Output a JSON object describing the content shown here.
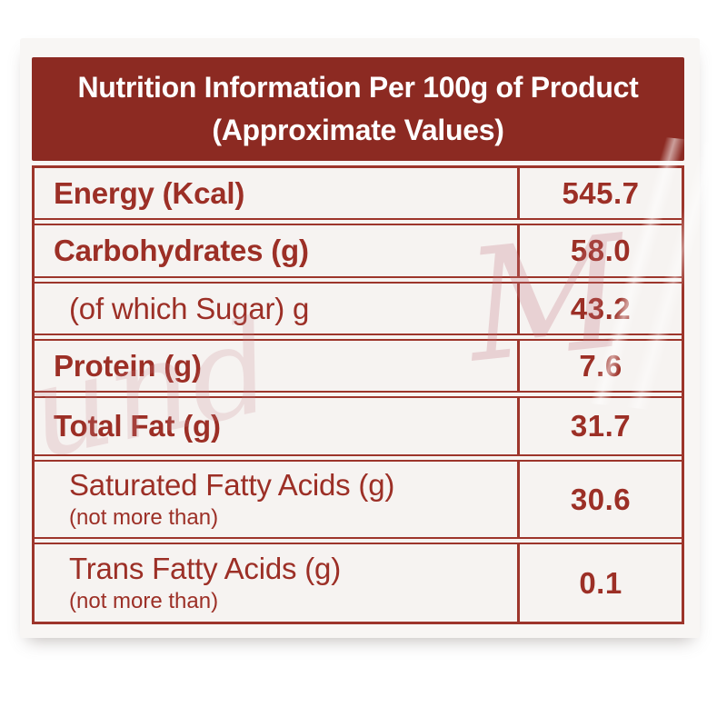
{
  "header": {
    "line1": "Nutrition Information Per 100g of Product",
    "line2": "(Approximate Values)"
  },
  "table": {
    "rows": [
      {
        "label": "Energy (Kcal)",
        "note": "",
        "value": "545.7"
      },
      {
        "label": "Carbohydrates (g)",
        "note": "",
        "value": "58.0"
      },
      {
        "label": "(of which Sugar) g",
        "note": "",
        "value": "43.2"
      },
      {
        "label": "Protein (g)",
        "note": "",
        "value": "7.6"
      },
      {
        "label": "Total Fat (g)",
        "note": "",
        "value": "31.7"
      },
      {
        "label": "Saturated Fatty Acids (g)",
        "note": "(not more than)",
        "value": "30.6"
      },
      {
        "label": "Trans Fatty Acids (g)",
        "note": "(not more than)",
        "value": "0.1"
      }
    ]
  },
  "watermarks": {
    "script1": "M",
    "script2": "und"
  },
  "colors": {
    "header_bg": "#8c2a22",
    "text_red": "#9c2f26",
    "border_red": "#9d352b",
    "row_bg": "#f6f3f1"
  }
}
